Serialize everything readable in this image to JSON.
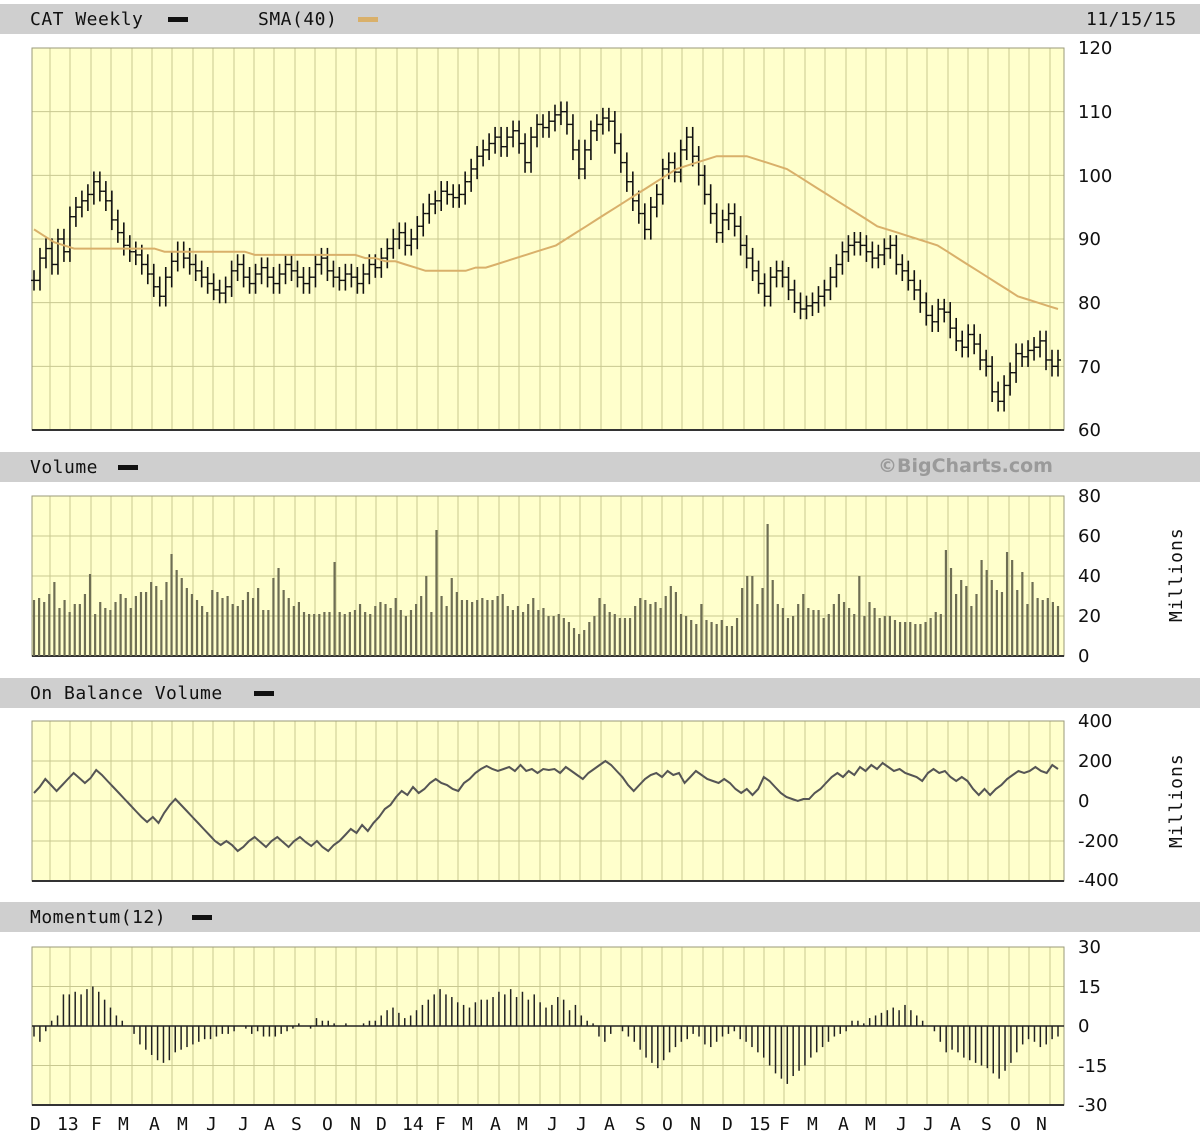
{
  "header": {
    "symbol_label": "CAT Weekly",
    "sma_label": "SMA(40)",
    "date": "11/15/15"
  },
  "credit": "©BigCharts.com",
  "colors": {
    "panel_bg": "#ffffcc",
    "grid": "#c8c890",
    "header_bg": "#cfcfcf",
    "price": "#111111",
    "sma": "#d9b06a",
    "volume": "#6e6e54",
    "obv": "#555555"
  },
  "chart_data": [
    {
      "type": "line",
      "panel": "price",
      "title": "CAT Weekly",
      "ylim": [
        60,
        120
      ],
      "yticks": [
        "120",
        "110",
        "100",
        "90",
        "80",
        "70",
        "60"
      ],
      "series": [
        {
          "name": "CAT Weekly",
          "style": "ohlc-bars",
          "values": [
            83.5,
            87,
            88.5,
            86,
            90,
            88,
            93.5,
            95,
            96,
            97,
            99,
            97.5,
            96,
            93,
            91,
            89,
            88,
            87.5,
            86,
            84.5,
            82.5,
            81,
            84,
            86.5,
            88,
            87,
            86,
            85,
            84,
            83,
            82,
            81.5,
            82.5,
            85,
            86,
            84,
            83,
            84.5,
            85.5,
            84,
            83,
            84.5,
            86,
            85,
            84,
            83,
            84,
            86,
            87,
            85,
            84,
            83.5,
            84.5,
            84,
            83,
            84.5,
            86,
            85.5,
            87,
            88.5,
            90,
            91,
            89,
            90,
            92,
            94,
            95.5,
            96,
            97.5,
            97,
            96.5,
            97,
            99,
            101,
            103,
            104,
            105,
            106,
            104.5,
            106,
            107,
            105,
            102,
            106,
            108,
            107.5,
            108.5,
            109.5,
            110,
            108,
            104,
            101,
            104,
            107,
            108,
            109,
            108.5,
            105,
            102,
            99,
            96,
            94,
            91.5,
            95,
            97,
            101,
            102,
            100.5,
            104,
            106,
            103,
            100,
            97,
            94,
            91,
            93,
            94,
            92,
            89,
            87,
            85,
            83,
            81,
            84,
            85,
            84,
            82,
            80,
            79,
            79.5,
            80,
            81,
            82,
            84,
            86,
            88,
            89,
            89.5,
            89,
            88,
            87,
            87.5,
            88.5,
            89,
            86,
            85,
            83.5,
            82,
            80,
            78,
            77,
            79,
            78.5,
            76,
            74,
            73,
            75,
            73.5,
            71,
            70,
            66,
            64.5,
            67,
            69,
            72,
            71.5,
            72.5,
            73,
            74,
            71,
            70,
            71
          ]
        },
        {
          "name": "SMA(40)",
          "values": [
            91.5,
            90.5,
            89.5,
            89,
            88.5,
            88.5,
            88.5,
            88.5,
            88.5,
            88.5,
            88.5,
            88.5,
            88.5,
            88,
            88,
            88,
            88,
            88,
            88,
            88,
            88,
            88,
            87.5,
            87.5,
            87.5,
            87.5,
            87.5,
            87.5,
            87.5,
            87.5,
            87.5,
            87.5,
            87.5,
            87,
            87,
            86.5,
            86.5,
            86,
            85.5,
            85,
            85,
            85,
            85,
            85,
            85.5,
            85.5,
            86,
            86.5,
            87,
            87.5,
            88,
            88.5,
            89,
            90,
            91,
            92,
            93,
            94,
            95,
            96,
            97,
            98,
            99,
            100,
            101,
            101.5,
            102,
            102.5,
            103,
            103,
            103,
            103,
            102.5,
            102,
            101.5,
            101,
            100,
            99,
            98,
            97,
            96,
            95,
            94,
            93,
            92,
            91.5,
            91,
            90.5,
            90,
            89.5,
            89,
            88,
            87,
            86,
            85,
            84,
            83,
            82,
            81,
            80.5,
            80,
            79.5,
            79
          ]
        }
      ]
    },
    {
      "type": "bar",
      "panel": "volume",
      "title": "Volume",
      "ylabel": "Millions",
      "ylim": [
        0,
        80
      ],
      "yticks": [
        "80",
        "60",
        "40",
        "20",
        "0"
      ],
      "series": [
        {
          "name": "Volume",
          "values": [
            28,
            29,
            27,
            31,
            37,
            24,
            28,
            22,
            26,
            26,
            31,
            41,
            21,
            27,
            24,
            23,
            27,
            31,
            29,
            24,
            30,
            32,
            32,
            37,
            35,
            28,
            37,
            51,
            43,
            39,
            34,
            31,
            28,
            25,
            22,
            33,
            32,
            29,
            30,
            26,
            25,
            28,
            32,
            29,
            34,
            23,
            23,
            39,
            44,
            33,
            29,
            25,
            27,
            22,
            21,
            21,
            21,
            22,
            22,
            47,
            22,
            21,
            22,
            23,
            26,
            22,
            21,
            25,
            27,
            26,
            24,
            29,
            23,
            20,
            23,
            26,
            30,
            40,
            22,
            63,
            30,
            25,
            39,
            32,
            28,
            28,
            27,
            28,
            29,
            28,
            28,
            30,
            31,
            25,
            23,
            25,
            22,
            26,
            29,
            23,
            24,
            20,
            20,
            21,
            19,
            17,
            14,
            11,
            13,
            17,
            20,
            29,
            26,
            22,
            21,
            19,
            19,
            19,
            25,
            29,
            28,
            26,
            27,
            24,
            30,
            35,
            32,
            21,
            20,
            18,
            16,
            26,
            18,
            17,
            16,
            18,
            15,
            15,
            19,
            34,
            40,
            40,
            26,
            34,
            66,
            38,
            26,
            24,
            19,
            20,
            26,
            31,
            24,
            23,
            23,
            19,
            21,
            26,
            31,
            27,
            24,
            21,
            40,
            20,
            27,
            24,
            19,
            20,
            20,
            18,
            17,
            17,
            17,
            16,
            16,
            17,
            19,
            22,
            21,
            53,
            44,
            31,
            38,
            35,
            25,
            31,
            48,
            43,
            38,
            33,
            32,
            52,
            48,
            33,
            42,
            26,
            37,
            29,
            28,
            29,
            27,
            25
          ]
        }
      ]
    },
    {
      "type": "line",
      "panel": "obv",
      "title": "On Balance Volume",
      "ylabel": "Millions",
      "ylim": [
        -400,
        400
      ],
      "yticks": [
        "400",
        "200",
        "0",
        "-200",
        "-400"
      ],
      "series": [
        {
          "name": "On Balance Volume",
          "values": [
            40,
            70,
            110,
            80,
            50,
            80,
            110,
            140,
            115,
            90,
            115,
            155,
            130,
            100,
            70,
            40,
            10,
            -20,
            -50,
            -80,
            -105,
            -80,
            -110,
            -60,
            -20,
            10,
            -20,
            -50,
            -80,
            -110,
            -140,
            -170,
            -200,
            -220,
            -200,
            -220,
            -250,
            -230,
            -200,
            -180,
            -205,
            -230,
            -200,
            -180,
            -205,
            -230,
            -200,
            -180,
            -205,
            -225,
            -200,
            -230,
            -250,
            -220,
            -200,
            -170,
            -140,
            -160,
            -120,
            -150,
            -110,
            -80,
            -40,
            -20,
            20,
            50,
            30,
            70,
            40,
            60,
            90,
            110,
            90,
            80,
            60,
            50,
            90,
            110,
            140,
            160,
            175,
            160,
            150,
            160,
            170,
            150,
            180,
            150,
            160,
            140,
            160,
            155,
            160,
            140,
            170,
            150,
            130,
            110,
            140,
            160,
            180,
            200,
            180,
            150,
            120,
            80,
            50,
            80,
            110,
            130,
            140,
            120,
            150,
            130,
            140,
            90,
            120,
            150,
            130,
            110,
            100,
            90,
            110,
            90,
            60,
            40,
            60,
            30,
            60,
            120,
            100,
            70,
            40,
            20,
            10,
            0,
            10,
            10,
            40,
            60,
            90,
            120,
            140,
            120,
            150,
            130,
            170,
            150,
            180,
            160,
            190,
            170,
            150,
            160,
            140,
            130,
            120,
            100,
            140,
            160,
            140,
            150,
            120,
            100,
            120,
            100,
            60,
            30,
            60,
            30,
            60,
            80,
            110,
            130,
            150,
            140,
            150,
            170,
            150,
            140,
            180,
            160
          ]
        }
      ]
    },
    {
      "type": "bar",
      "panel": "momentum",
      "title": "Momentum(12)",
      "ylim": [
        -30,
        30
      ],
      "yticks": [
        "30",
        "15",
        "0",
        "-15",
        "-30"
      ],
      "series": [
        {
          "name": "Momentum(12)",
          "values": [
            -4,
            -6,
            -2,
            2,
            4,
            12,
            12,
            13,
            12,
            14,
            15,
            13,
            10,
            7,
            4,
            2,
            0,
            -3,
            -7,
            -9,
            -11,
            -13,
            -14,
            -13,
            -10,
            -9,
            -8,
            -7,
            -6,
            -5,
            -5,
            -4,
            -3,
            -3,
            -2,
            0,
            -1,
            -3,
            -2,
            -4,
            -4,
            -4,
            -3,
            -2,
            -1,
            1,
            0,
            -1,
            3,
            2,
            2,
            1,
            0,
            1,
            0,
            0,
            1,
            2,
            2,
            4,
            6,
            7,
            5,
            3,
            4,
            6,
            8,
            10,
            12,
            14,
            12,
            11,
            9,
            8,
            7,
            9,
            10,
            10,
            11,
            13,
            12,
            14,
            11,
            13,
            10,
            12,
            9,
            7,
            8,
            11,
            10,
            6,
            8,
            4,
            2,
            1,
            -4,
            -6,
            -3,
            0,
            -2,
            -4,
            -6,
            -9,
            -12,
            -14,
            -16,
            -13,
            -10,
            -8,
            -6,
            -5,
            -3,
            -4,
            -7,
            -8,
            -6,
            -4,
            -3,
            -2,
            -5,
            -6,
            -8,
            -10,
            -12,
            -15,
            -18,
            -20,
            -22,
            -19,
            -17,
            -15,
            -12,
            -10,
            -8,
            -6,
            -4,
            -3,
            -2,
            2,
            2,
            1,
            3,
            4,
            5,
            6,
            7,
            6,
            8,
            6,
            4,
            2,
            0,
            -2,
            -6,
            -10,
            -9,
            -10,
            -12,
            -13,
            -14,
            -15,
            -16,
            -18,
            -20,
            -17,
            -14,
            -10,
            -7,
            -5,
            -6,
            -8,
            -7,
            -5,
            -4
          ]
        }
      ]
    }
  ],
  "x_labels": [
    "D",
    "13",
    "F",
    "M",
    "A",
    "M",
    "J",
    "J",
    "A",
    "S",
    "O",
    "N",
    "D",
    "14",
    "F",
    "M",
    "A",
    "M",
    "J",
    "J",
    "A",
    "S",
    "O",
    "N",
    "D",
    "15",
    "F",
    "M",
    "A",
    "M",
    "J",
    "J",
    "A",
    "S",
    "O",
    "N"
  ],
  "panel_titles": {
    "volume": "Volume",
    "obv": "On Balance Volume",
    "momentum": "Momentum(12)"
  },
  "units": {
    "volume": "Millions",
    "obv": "Millions"
  }
}
